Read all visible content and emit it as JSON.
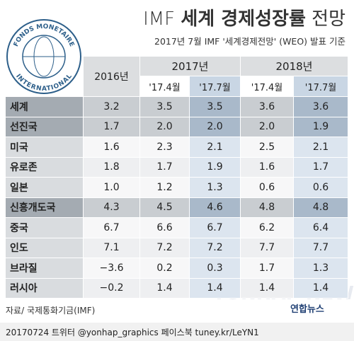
{
  "title": [
    "IMF",
    "세계 경제성장률",
    "전망"
  ],
  "subtitle": "2017년 7월 IMF '세계경제전망' (WEO) 발표 기준",
  "logo_text": [
    "FONDS MONETAIRE",
    "INTERNATIONAL"
  ],
  "table": {
    "header": {
      "first": "2016년",
      "groups": [
        {
          "label": "2017년",
          "subs": [
            "'17.4월",
            "'17.7월"
          ]
        },
        {
          "label": "2018년",
          "subs": [
            "'17.4월",
            "'17.7월"
          ]
        }
      ]
    },
    "rows": [
      [
        "세계",
        "3.2",
        "3.5",
        "3.5",
        "3.6",
        "3.6"
      ],
      [
        "선진국",
        "1.7",
        "2.0",
        "2.0",
        "2.0",
        "1.9"
      ],
      [
        "미국",
        "1.6",
        "2.3",
        "2.1",
        "2.5",
        "2.1"
      ],
      [
        "유로존",
        "1.8",
        "1.7",
        "1.9",
        "1.6",
        "1.7"
      ],
      [
        "일본",
        "1.0",
        "1.2",
        "1.3",
        "0.6",
        "0.6"
      ],
      [
        "신흥개도국",
        "4.3",
        "4.5",
        "4.6",
        "4.8",
        "4.8"
      ],
      [
        "중국",
        "6.7",
        "6.6",
        "6.7",
        "6.2",
        "6.4"
      ],
      [
        "인도",
        "7.1",
        "7.2",
        "7.2",
        "7.7",
        "7.7"
      ],
      [
        "브라질",
        "−3.6",
        "0.2",
        "0.3",
        "1.7",
        "1.3"
      ],
      [
        "러시아",
        "−0.2",
        "1.4",
        "1.4",
        "1.4",
        "1.4"
      ]
    ]
  },
  "source": "자료/ 국제통화기금(IMF)",
  "watermark": "YONHAP NEWS",
  "brand": "연합뉴스",
  "footer": "20170724  트위터 @yonhap_graphics  페이스북 tuney.kr/LeYN1"
}
